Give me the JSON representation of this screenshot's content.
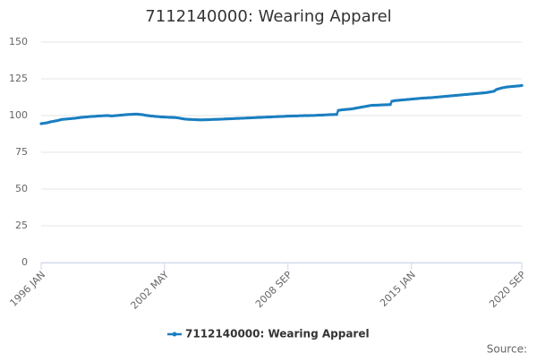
{
  "chart_data": {
    "type": "line",
    "title": "7112140000: Wearing Apparel",
    "source": "Source:",
    "categories": [
      "1996 JAN",
      null,
      null,
      null,
      null,
      null,
      null,
      null,
      null,
      null,
      null,
      null,
      null,
      null,
      null,
      null,
      null,
      null,
      null,
      null,
      null,
      null,
      null,
      null,
      null,
      null,
      null,
      null,
      null,
      null,
      null,
      null,
      null,
      null,
      null,
      null,
      null,
      null,
      null,
      null,
      null,
      null,
      null,
      null,
      null,
      null,
      null,
      null,
      null,
      null,
      null,
      null,
      null,
      null,
      null,
      null,
      null,
      null,
      null,
      null,
      null,
      null,
      null,
      null,
      null,
      null,
      null,
      null,
      null,
      null,
      null,
      null,
      null,
      null,
      null,
      null,
      "2002 MAY",
      null,
      null,
      null,
      null,
      null,
      null,
      null,
      null,
      null,
      null,
      null,
      null,
      null,
      null,
      null,
      null,
      null,
      null,
      null,
      null,
      null,
      null,
      null,
      null,
      null,
      null,
      null,
      null,
      null,
      null,
      null,
      null,
      null,
      null,
      null,
      null,
      null,
      null,
      null,
      null,
      null,
      null,
      null,
      null,
      null,
      null,
      null,
      null,
      null,
      null,
      null,
      null,
      null,
      null,
      null,
      null,
      null,
      null,
      null,
      null,
      null,
      null,
      null,
      null,
      null,
      null,
      null,
      null,
      null,
      null,
      null,
      null,
      null,
      null,
      null,
      "2008 SEP",
      null,
      null,
      null,
      null,
      null,
      null,
      null,
      null,
      null,
      null,
      null,
      null,
      null,
      null,
      null,
      null,
      null,
      null,
      null,
      null,
      null,
      null,
      null,
      null,
      null,
      null,
      null,
      null,
      null,
      null,
      null,
      null,
      null,
      null,
      null,
      null,
      null,
      null,
      null,
      null,
      null,
      null,
      null,
      null,
      null,
      null,
      null,
      null,
      null,
      null,
      null,
      null,
      null,
      null,
      null,
      null,
      null,
      null,
      null,
      null,
      null,
      null,
      null,
      null,
      null,
      null,
      null,
      null,
      null,
      null,
      null,
      null,
      null,
      null,
      null,
      "2015 JAN",
      null,
      null,
      null,
      null,
      null,
      null,
      null,
      null,
      null,
      null,
      null,
      null,
      null,
      null,
      null,
      null,
      null,
      null,
      null,
      null,
      null,
      null,
      null,
      null,
      null,
      null,
      null,
      null,
      null,
      null,
      null,
      null,
      null,
      null,
      null,
      null,
      null,
      null,
      null,
      null,
      null,
      null,
      null,
      null,
      null,
      null,
      null,
      null,
      null,
      null,
      null,
      null,
      null,
      null,
      null,
      null,
      null,
      null,
      null,
      null,
      null,
      null,
      null,
      null,
      null,
      null,
      null,
      "2020 SEP"
    ],
    "series": [
      {
        "name": "7112140000: Wearing Apparel",
        "color": "#1a7fc1",
        "values": [
          94.5,
          94.7,
          94.8,
          95,
          95.2,
          95.5,
          95.8,
          96,
          96.2,
          96.4,
          96.6,
          96.9,
          97.2,
          97.4,
          97.5,
          97.6,
          97.7,
          97.8,
          97.9,
          98,
          98.1,
          98.2,
          98.4,
          98.5,
          98.7,
          98.8,
          98.9,
          99,
          99.1,
          99.2,
          99.3,
          99.4,
          99.5,
          99.5,
          99.6,
          99.7,
          99.8,
          99.8,
          99.9,
          99.9,
          100,
          100,
          99.9,
          99.8,
          99.8,
          99.9,
          100,
          100.1,
          100.2,
          100.3,
          100.4,
          100.5,
          100.6,
          100.7,
          100.8,
          100.8,
          100.9,
          100.9,
          101,
          101,
          100.9,
          100.8,
          100.7,
          100.5,
          100.3,
          100.1,
          100,
          99.8,
          99.7,
          99.6,
          99.5,
          99.4,
          99.3,
          99.2,
          99.1,
          99,
          99,
          98.9,
          98.9,
          98.8,
          98.8,
          98.7,
          98.7,
          98.6,
          98.5,
          98.3,
          98.1,
          97.9,
          97.7,
          97.6,
          97.5,
          97.4,
          97.4,
          97.3,
          97.3,
          97.2,
          97.2,
          97.1,
          97.1,
          97.1,
          97.1,
          97.2,
          97.2,
          97.2,
          97.3,
          97.3,
          97.4,
          97.4,
          97.4,
          97.5,
          97.5,
          97.6,
          97.6,
          97.7,
          97.7,
          97.8,
          97.8,
          97.9,
          97.9,
          98,
          98,
          98.1,
          98.1,
          98.2,
          98.2,
          98.3,
          98.3,
          98.4,
          98.4,
          98.5,
          98.5,
          98.6,
          98.6,
          98.7,
          98.7,
          98.8,
          98.8,
          98.9,
          98.9,
          99,
          99,
          99.1,
          99.1,
          99.2,
          99.2,
          99.3,
          99.3,
          99.4,
          99.4,
          99.5,
          99.5,
          99.6,
          99.6,
          99.7,
          99.7,
          99.7,
          99.8,
          99.8,
          99.8,
          99.9,
          99.9,
          99.9,
          100,
          100,
          100,
          100,
          100.1,
          100.1,
          100.1,
          100.2,
          100.2,
          100.3,
          100.3,
          100.4,
          100.4,
          100.5,
          100.5,
          100.6,
          100.6,
          100.7,
          100.7,
          100.8,
          100.8,
          103.5,
          103.7,
          103.9,
          104,
          104.1,
          104.2,
          104.3,
          104.4,
          104.5,
          104.7,
          104.9,
          105.1,
          105.3,
          105.5,
          105.7,
          105.9,
          106.1,
          106.3,
          106.5,
          106.7,
          106.9,
          107,
          107,
          107.1,
          107.1,
          107.2,
          107.2,
          107.3,
          107.3,
          107.4,
          107.4,
          107.5,
          107.5,
          109.8,
          110,
          110.2,
          110.3,
          110.4,
          110.5,
          110.6,
          110.7,
          110.8,
          110.9,
          111,
          111.1,
          111.2,
          111.3,
          111.4,
          111.5,
          111.6,
          111.7,
          111.8,
          111.9,
          112,
          112,
          112.1,
          112.1,
          112.2,
          112.3,
          112.4,
          112.5,
          112.6,
          112.7,
          112.8,
          112.9,
          113,
          113.1,
          113.2,
          113.3,
          113.4,
          113.5,
          113.6,
          113.7,
          113.8,
          113.9,
          114,
          114.1,
          114.2,
          114.3,
          114.4,
          114.5,
          114.6,
          114.7,
          114.8,
          114.9,
          115,
          115.1,
          115.2,
          115.3,
          115.4,
          115.5,
          115.6,
          115.8,
          116,
          116.2,
          116.4,
          116.6,
          117.5,
          118,
          118.3,
          118.6,
          118.9,
          119.1,
          119.3,
          119.5,
          119.6,
          119.7,
          119.8,
          119.9,
          120,
          120.1,
          120.2,
          120.3,
          120.5
        ]
      }
    ],
    "ylim": [
      0,
      150
    ],
    "yticks": [
      0,
      25,
      50,
      75,
      100,
      125,
      150
    ],
    "grid": true,
    "legend": "bottom"
  }
}
